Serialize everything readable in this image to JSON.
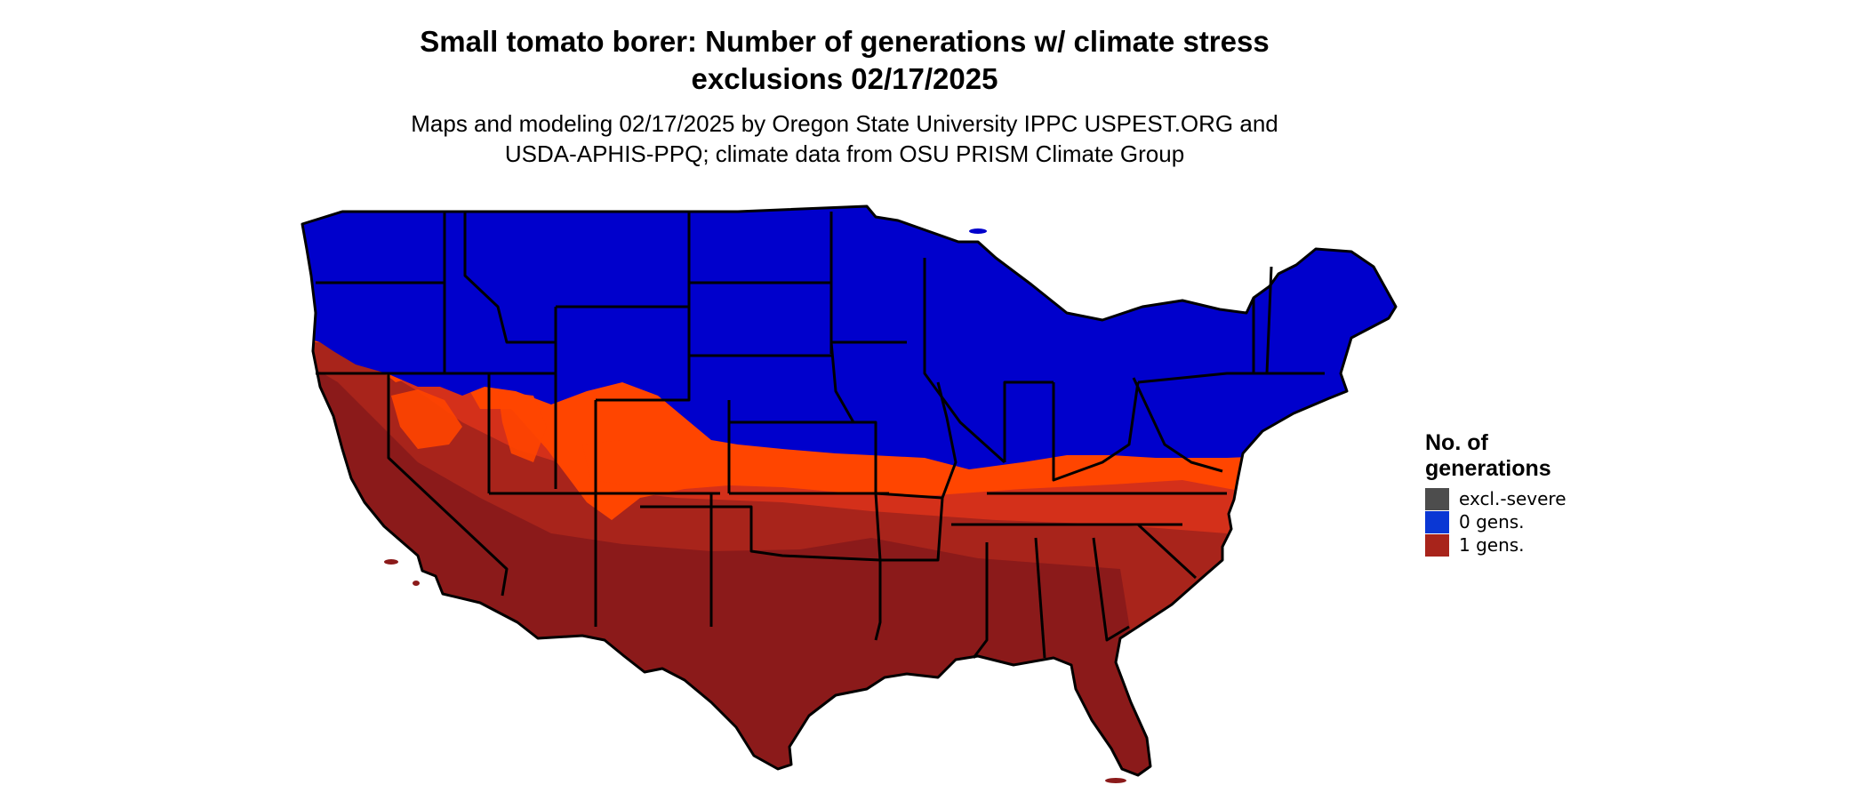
{
  "title": {
    "line1": "Small tomato borer: Number of generations w/ climate stress",
    "line2": "exclusions 02/17/2025"
  },
  "subtitle": {
    "line1": "Maps and modeling 02/17/2025 by Oregon State University IPPC USPEST.ORG and",
    "line2": "USDA-APHIS-PPQ; climate data from OSU PRISM Climate Group"
  },
  "legend": {
    "title_line1": "No. of",
    "title_line2": "generations",
    "items": [
      {
        "label": "excl.-severe",
        "color": "#4d4d4d"
      },
      {
        "label": "0 gens.",
        "color": "#0a37d4"
      },
      {
        "label": "1 gens.",
        "color": "#a8241b"
      }
    ]
  },
  "map": {
    "colors": {
      "zero_generations": "#0000cc",
      "transition_orange": "#ff4500",
      "mid_red": "#d4301a",
      "one_generation": "#8b1a1a",
      "borders": "#000000"
    }
  }
}
